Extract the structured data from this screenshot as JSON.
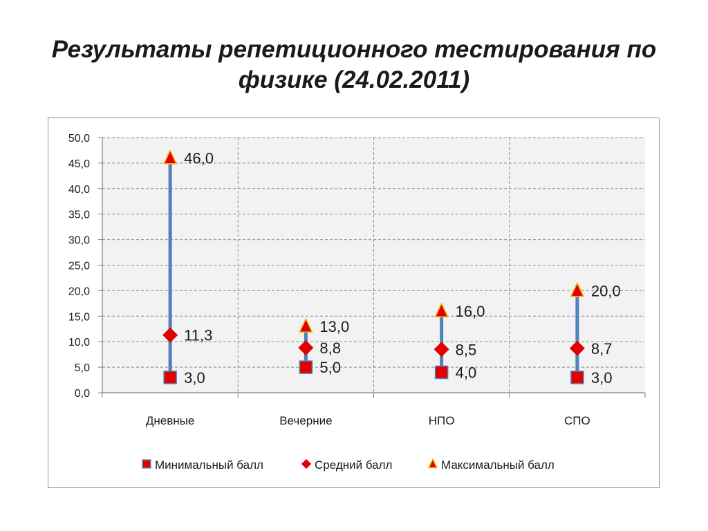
{
  "title": {
    "line1": "Результаты репетиционного тестирования по",
    "line2": "физике (24.02.2011)"
  },
  "chart_data": {
    "type": "scatter",
    "subtype": "high-low-close",
    "categories": [
      "Дневные",
      "Вечерние",
      "НПО",
      "СПО"
    ],
    "series": [
      {
        "name": "Минимальный балл",
        "marker": "square",
        "color": "#e00000",
        "values": [
          3.0,
          5.0,
          4.0,
          3.0
        ],
        "labels": [
          "3,0",
          "5,0",
          "4,0",
          "3,0"
        ]
      },
      {
        "name": "Средний балл",
        "marker": "diamond",
        "color": "#e00000",
        "values": [
          11.3,
          8.8,
          8.5,
          8.7
        ],
        "labels": [
          "11,3",
          "8,8",
          "8,5",
          "8,7"
        ]
      },
      {
        "name": "Максимальный балл",
        "marker": "triangle",
        "color": "#e00000",
        "values": [
          46.0,
          13.0,
          16.0,
          20.0
        ],
        "labels": [
          "46,0",
          "13,0",
          "16,0",
          "20,0"
        ]
      }
    ],
    "range_line_color": "#4f81bd",
    "ylim": [
      0,
      50
    ],
    "yticks": [
      "0,0",
      "5,0",
      "10,0",
      "15,0",
      "20,0",
      "25,0",
      "30,0",
      "35,0",
      "40,0",
      "45,0",
      "50,0"
    ],
    "grid": true,
    "legend_position": "bottom"
  }
}
